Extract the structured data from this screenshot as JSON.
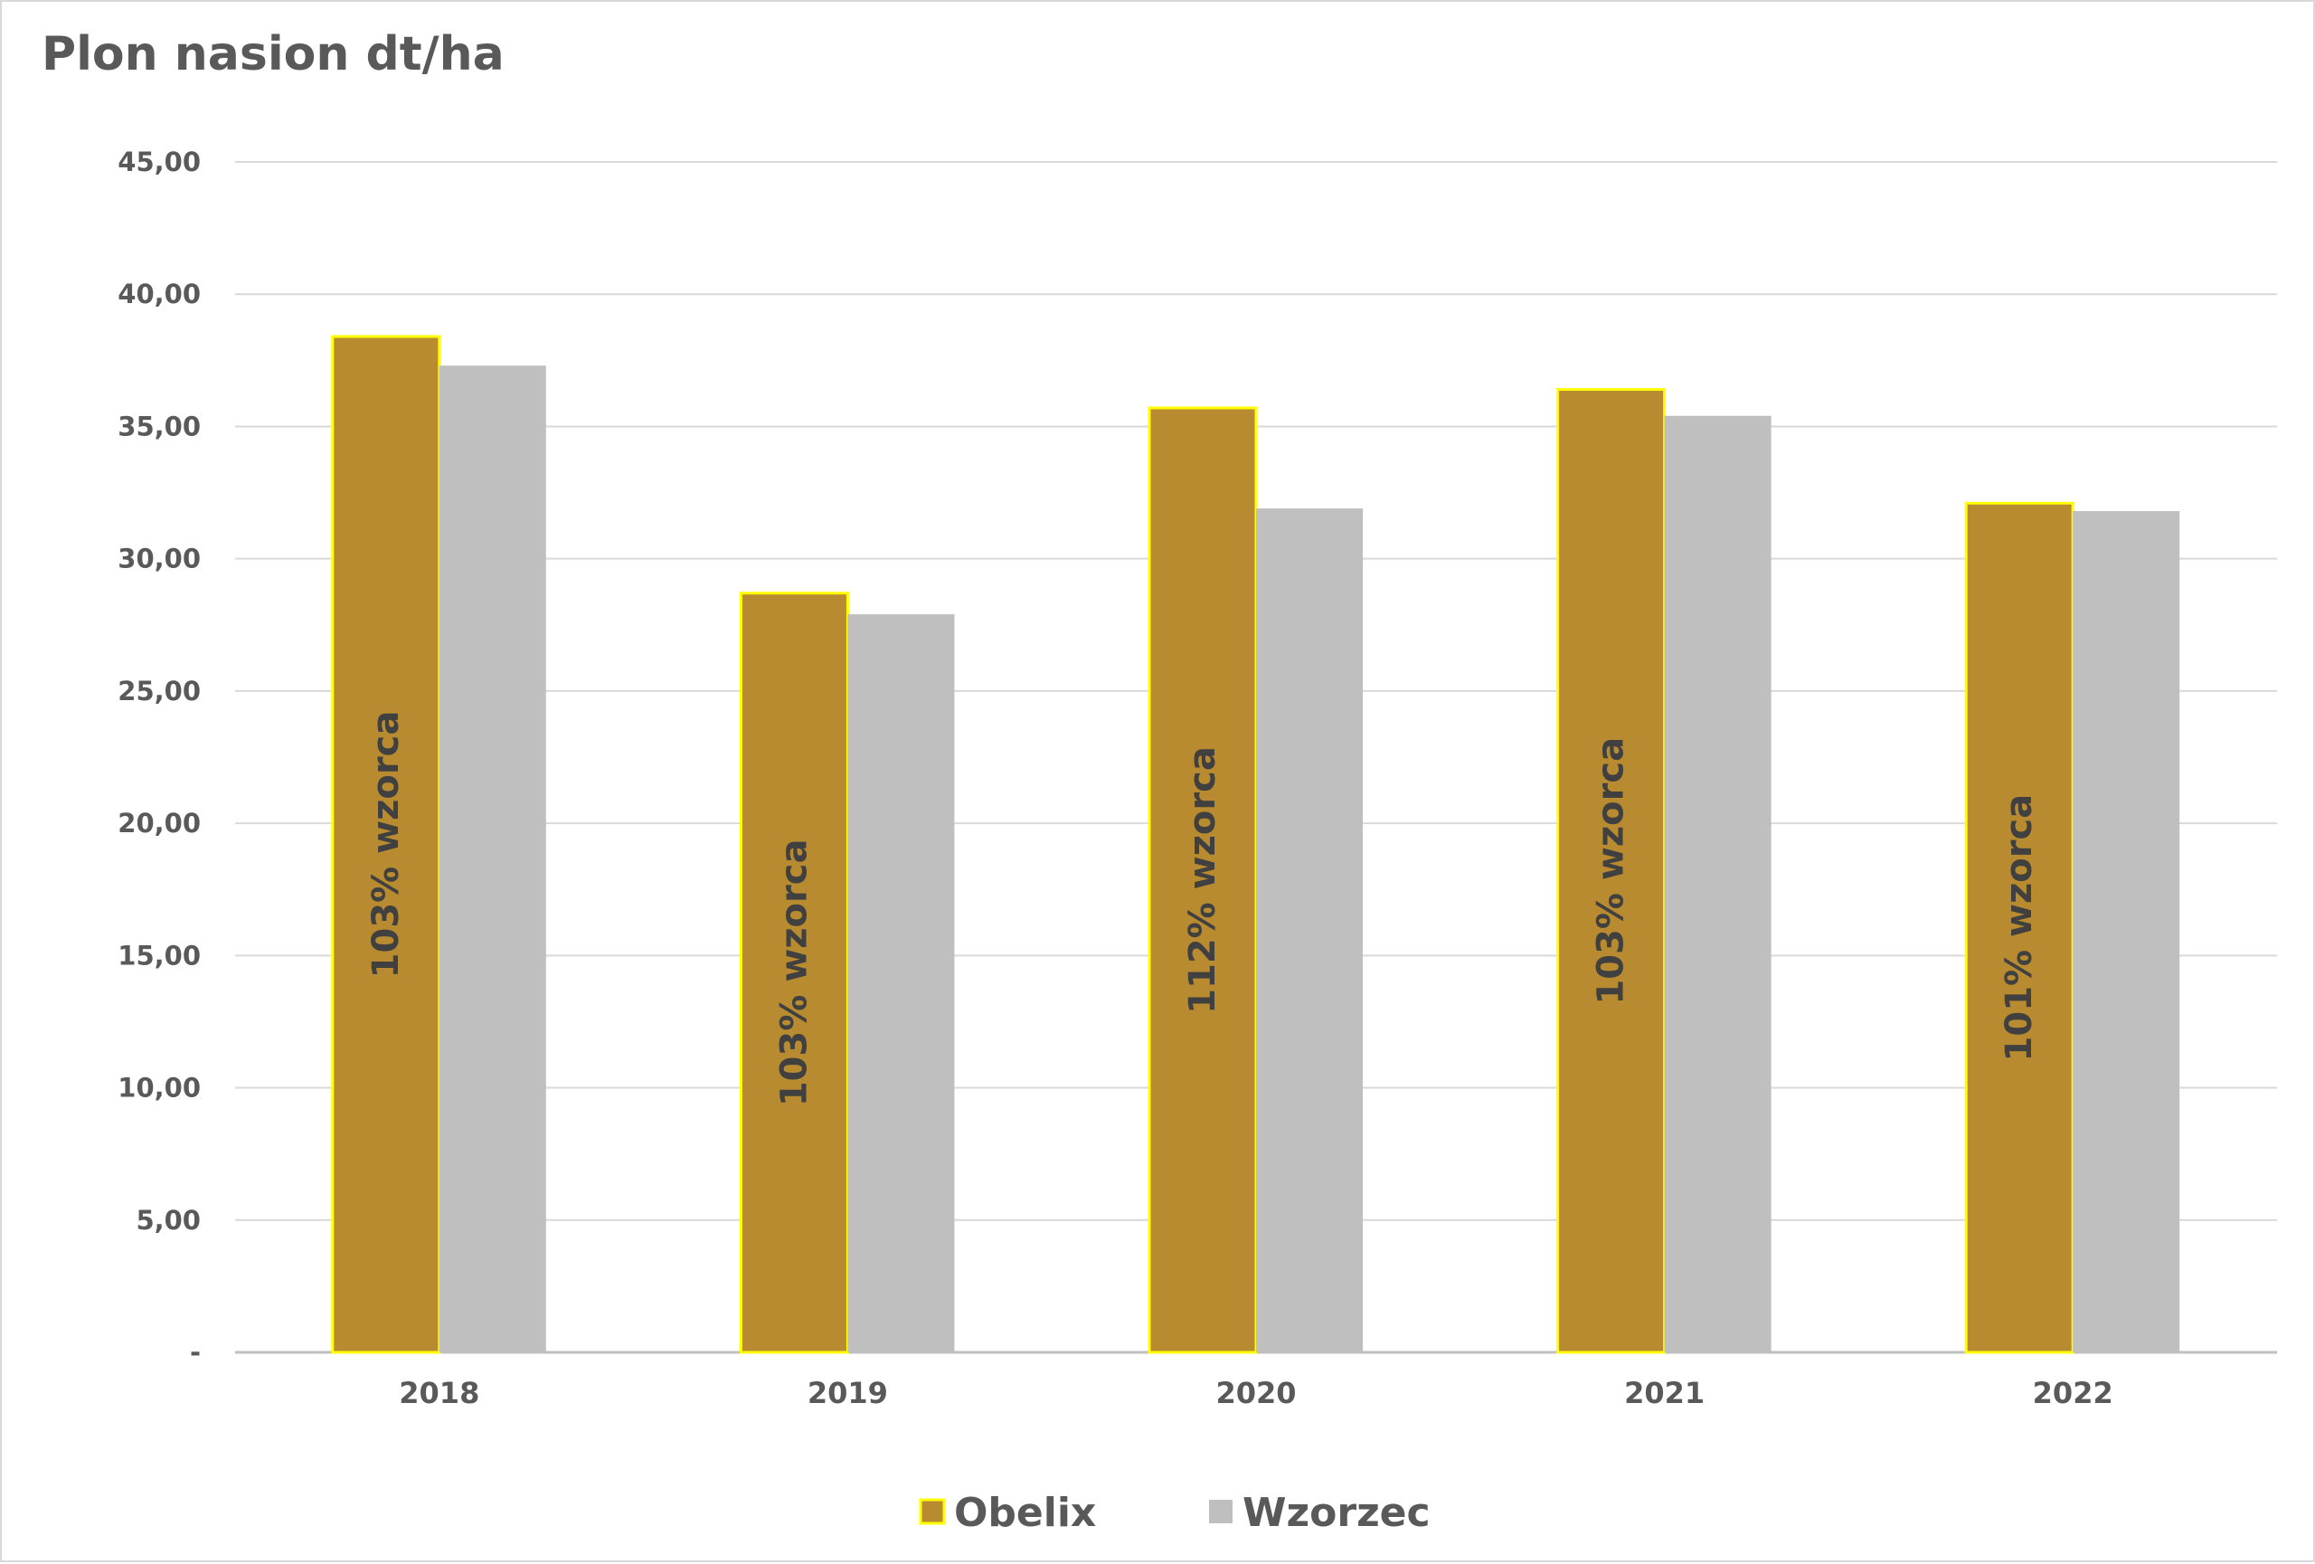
{
  "chart_data": {
    "type": "bar",
    "title": "Plon nasion dt/ha",
    "xlabel": "",
    "ylabel": "",
    "categories": [
      "2018",
      "2019",
      "2020",
      "2021",
      "2022"
    ],
    "ylim": [
      0,
      45
    ],
    "y_ticks": [
      {
        "value": 0,
        "label": "-"
      },
      {
        "value": 5,
        "label": "5,00"
      },
      {
        "value": 10,
        "label": "10,00"
      },
      {
        "value": 15,
        "label": "15,00"
      },
      {
        "value": 20,
        "label": "20,00"
      },
      {
        "value": 25,
        "label": "25,00"
      },
      {
        "value": 30,
        "label": "30,00"
      },
      {
        "value": 35,
        "label": "35,00"
      },
      {
        "value": 40,
        "label": "40,00"
      },
      {
        "value": 45,
        "label": "45,00"
      }
    ],
    "grid": true,
    "legend_position": "bottom",
    "series": [
      {
        "name": "Obelix",
        "color": "#b98b30",
        "border_color": "#ffff00",
        "values": [
          38.4,
          28.7,
          35.7,
          36.4,
          32.1
        ],
        "data_labels": [
          "103% wzorca",
          "103% wzorca",
          "112% wzorca",
          "103% wzorca",
          "101% wzorca"
        ]
      },
      {
        "name": "Wzorzec",
        "color": "#bfbfbf",
        "values": [
          37.3,
          27.9,
          31.9,
          35.4,
          31.8
        ]
      }
    ]
  }
}
